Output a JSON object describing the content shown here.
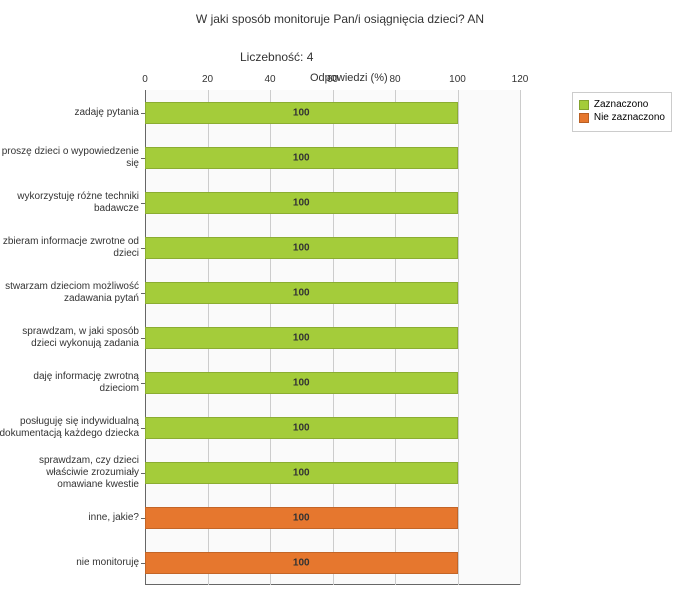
{
  "title": "W jaki sposób monitoruje Pan/i osiągnięcia dzieci?  AN",
  "subtitle": "Liczebność: 4",
  "axis_title": "Odpowiedzi (%)",
  "legend": {
    "checked": "Zaznaczono",
    "unchecked": "Nie zaznaczono"
  },
  "chart": {
    "type": "bar_horizontal",
    "xlim": [
      0,
      120
    ],
    "xtick_step": 20,
    "xticks": [
      0,
      20,
      40,
      60,
      80,
      100,
      120
    ],
    "background_color": "#fafafa",
    "grid_color": "#cccccc",
    "axis_color": "#666666",
    "colors": {
      "checked": "#a4cc3a",
      "unchecked": "#e6772e"
    },
    "bar_label_fontsize": 10,
    "categories": [
      {
        "label": "zadaję pytania",
        "value": 100,
        "series": "checked"
      },
      {
        "label": "proszę dzieci o wypowiedzenie się",
        "value": 100,
        "series": "checked"
      },
      {
        "label": "wykorzystuję różne techniki badawcze",
        "value": 100,
        "series": "checked"
      },
      {
        "label": "zbieram informacje zwrotne od dzieci",
        "value": 100,
        "series": "checked"
      },
      {
        "label": "stwarzam dzieciom możliwość zadawania pytań",
        "value": 100,
        "series": "checked"
      },
      {
        "label": "sprawdzam, w jaki sposób dzieci wykonują zadania",
        "value": 100,
        "series": "checked"
      },
      {
        "label": "daję informację zwrotną dzieciom",
        "value": 100,
        "series": "checked"
      },
      {
        "label": "posługuję się indywidualną dokumentacją każdego dziecka",
        "value": 100,
        "series": "checked"
      },
      {
        "label": "sprawdzam, czy dzieci właściwie zrozumiały omawiane kwestie",
        "value": 100,
        "series": "checked"
      },
      {
        "label": "inne, jakie?",
        "value": 100,
        "series": "unchecked"
      },
      {
        "label": "nie monitoruję",
        "value": 100,
        "series": "unchecked"
      }
    ]
  }
}
